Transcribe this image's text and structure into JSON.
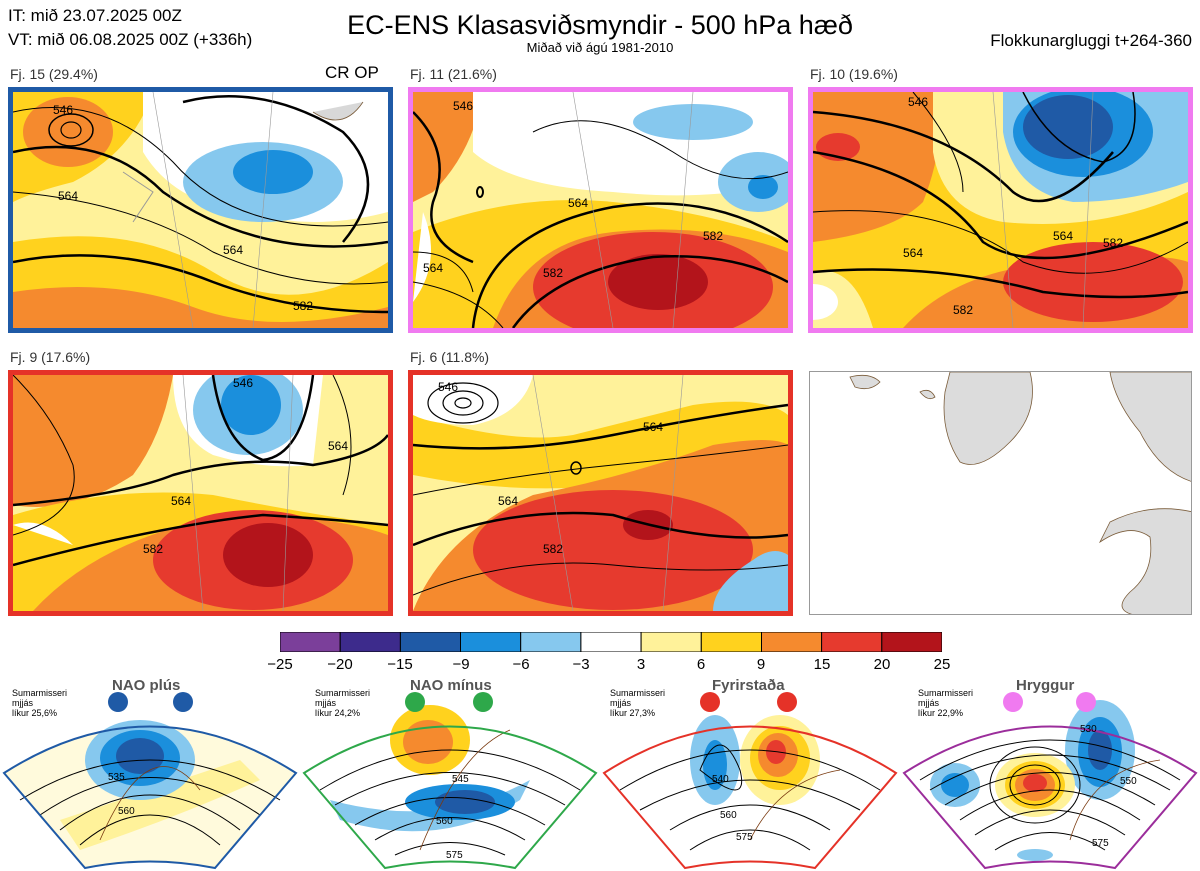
{
  "header": {
    "it": "IT: mið 23.07.2025 00Z",
    "vt": "VT: mið 06.08.2025 00Z  (+336h)",
    "title": "EC-ENS Klasasviðsmyndir - 500 hPa hæð",
    "subtitle": "Miðað við ágú 1981-2010",
    "window": "Flokkunargluggi t+264-360"
  },
  "panels": [
    {
      "label": "Fj. 15 (29.4%)",
      "border": "#1f5aa6",
      "extra": "CR OP",
      "contours": [
        "546",
        "564",
        "564",
        "582"
      ]
    },
    {
      "label": "Fj. 11 (21.6%)",
      "border": "#f07af0",
      "contours": [
        "546",
        "564",
        "582",
        "582",
        "564"
      ]
    },
    {
      "label": "Fj. 10 (19.6%)",
      "border": "#f07af0",
      "contours": [
        "546",
        "564",
        "564",
        "582",
        "582"
      ]
    },
    {
      "label": "Fj. 9 (17.6%)",
      "border": "#e53228",
      "contours": [
        "546",
        "564",
        "564",
        "582"
      ]
    },
    {
      "label": "Fj. 6 (11.8%)",
      "border": "#e53228",
      "contours": [
        "546",
        "564",
        "564",
        "582"
      ]
    }
  ],
  "colorbar": {
    "ticks": [
      "−25",
      "−20",
      "−15",
      "−9",
      "−6",
      "−3",
      "3",
      "6",
      "9",
      "15",
      "20",
      "25"
    ],
    "colors": [
      "#7b3f9a",
      "#3d2b8c",
      "#1f5aa6",
      "#1b8fdc",
      "#86c8ee",
      "#ffffff",
      "#fff29a",
      "#ffd21e",
      "#f58a2e",
      "#e63a2e",
      "#b3141b"
    ]
  },
  "regimes": [
    {
      "name": "NAO plús",
      "season": "Sumarmisseri",
      "level": "mjjás",
      "prob": "líkur 25,6%",
      "color": "#1f5aa6",
      "contours": [
        "535",
        "560"
      ]
    },
    {
      "name": "NAO mínus",
      "season": "Sumarmisseri",
      "level": "mjjás",
      "prob": "líkur 24,2%",
      "color": "#2ea84a",
      "contours": [
        "545",
        "560",
        "575"
      ]
    },
    {
      "name": "Fyrirstaða",
      "season": "Sumarmisseri",
      "level": "mjjás",
      "prob": "líkur 27,3%",
      "color": "#e53228",
      "contours": [
        "540",
        "560",
        "575"
      ]
    },
    {
      "name": "Hryggur",
      "season": "Sumarmisseri",
      "level": "mjjás",
      "prob": "líkur 22,9%",
      "color": "#9b2d9b",
      "contours": [
        "530",
        "550",
        "575"
      ]
    }
  ]
}
